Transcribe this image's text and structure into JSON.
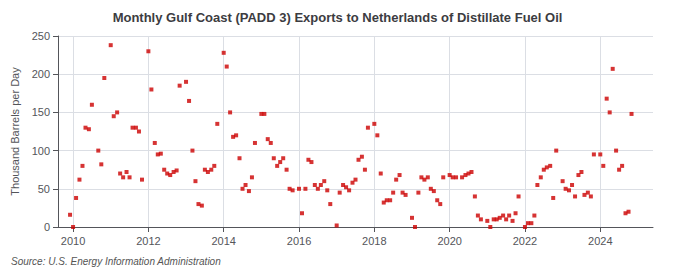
{
  "chart_data": {
    "type": "scatter",
    "title": "Monthly Gulf Coast (PADD 3) Exports to Netherlands of Distillate Fuel Oil",
    "ylabel": "Thousand Barrels per Day",
    "annotation": "Source: U.S. Energy Information Administration",
    "color": "#cc0000",
    "marker": "square",
    "grid": true,
    "xlim": [
      2009.6,
      2025.4
    ],
    "xticks": [
      2010,
      2012,
      2014,
      2016,
      2018,
      2020,
      2022,
      2024
    ],
    "ylim": [
      0,
      250
    ],
    "yticks": [
      0,
      50,
      100,
      150,
      200,
      250
    ],
    "x": [
      2009.92,
      2010.0,
      2010.08,
      2010.17,
      2010.25,
      2010.33,
      2010.42,
      2010.5,
      2010.67,
      2010.75,
      2010.83,
      2011.0,
      2011.08,
      2011.17,
      2011.25,
      2011.33,
      2011.42,
      2011.5,
      2011.58,
      2011.67,
      2011.75,
      2011.83,
      2012.0,
      2012.08,
      2012.17,
      2012.25,
      2012.33,
      2012.42,
      2012.5,
      2012.58,
      2012.67,
      2012.75,
      2012.83,
      2013.0,
      2013.08,
      2013.17,
      2013.25,
      2013.33,
      2013.42,
      2013.5,
      2013.58,
      2013.67,
      2013.75,
      2013.83,
      2014.0,
      2014.08,
      2014.17,
      2014.25,
      2014.33,
      2014.42,
      2014.5,
      2014.58,
      2014.67,
      2014.75,
      2014.83,
      2015.0,
      2015.08,
      2015.17,
      2015.25,
      2015.33,
      2015.42,
      2015.5,
      2015.58,
      2015.67,
      2015.75,
      2015.83,
      2016.0,
      2016.08,
      2016.17,
      2016.25,
      2016.33,
      2016.42,
      2016.5,
      2016.58,
      2016.67,
      2016.75,
      2016.83,
      2017.0,
      2017.08,
      2017.17,
      2017.25,
      2017.33,
      2017.42,
      2017.5,
      2017.58,
      2017.67,
      2017.75,
      2017.83,
      2018.0,
      2018.08,
      2018.17,
      2018.25,
      2018.33,
      2018.42,
      2018.5,
      2018.58,
      2018.67,
      2018.75,
      2018.83,
      2019.0,
      2019.08,
      2019.17,
      2019.25,
      2019.33,
      2019.42,
      2019.5,
      2019.58,
      2019.67,
      2019.75,
      2019.83,
      2020.0,
      2020.08,
      2020.17,
      2020.33,
      2020.42,
      2020.5,
      2020.58,
      2020.67,
      2020.75,
      2020.83,
      2021.0,
      2021.08,
      2021.17,
      2021.25,
      2021.33,
      2021.42,
      2021.5,
      2021.58,
      2021.67,
      2021.75,
      2021.83,
      2022.0,
      2022.08,
      2022.17,
      2022.25,
      2022.33,
      2022.42,
      2022.5,
      2022.58,
      2022.67,
      2022.75,
      2022.83,
      2023.0,
      2023.08,
      2023.17,
      2023.25,
      2023.33,
      2023.42,
      2023.5,
      2023.58,
      2023.67,
      2023.75,
      2023.83,
      2024.0,
      2024.08,
      2024.17,
      2024.25,
      2024.33,
      2024.42,
      2024.5,
      2024.58,
      2024.67,
      2024.75,
      2024.83
    ],
    "values": [
      16,
      0,
      38,
      62,
      80,
      130,
      128,
      160,
      100,
      82,
      195,
      238,
      145,
      150,
      70,
      65,
      72,
      65,
      130,
      130,
      125,
      62,
      230,
      180,
      110,
      95,
      96,
      75,
      70,
      68,
      72,
      74,
      185,
      190,
      165,
      100,
      60,
      30,
      28,
      75,
      72,
      75,
      80,
      135,
      228,
      210,
      150,
      118,
      120,
      90,
      50,
      55,
      47,
      65,
      110,
      148,
      148,
      115,
      110,
      90,
      80,
      85,
      90,
      75,
      50,
      48,
      50,
      18,
      50,
      88,
      85,
      55,
      50,
      55,
      60,
      48,
      30,
      2,
      45,
      55,
      52,
      48,
      58,
      62,
      88,
      92,
      75,
      130,
      135,
      120,
      70,
      32,
      35,
      35,
      45,
      62,
      68,
      45,
      42,
      12,
      0,
      45,
      65,
      62,
      65,
      50,
      47,
      35,
      30,
      65,
      68,
      65,
      65,
      65,
      68,
      70,
      72,
      40,
      15,
      10,
      8,
      0,
      10,
      10,
      12,
      15,
      10,
      15,
      8,
      18,
      40,
      0,
      5,
      5,
      15,
      55,
      65,
      75,
      78,
      80,
      38,
      100,
      60,
      50,
      48,
      55,
      40,
      68,
      72,
      42,
      45,
      40,
      95,
      95,
      80,
      168,
      150,
      207,
      100,
      75,
      80,
      18,
      20,
      148
    ]
  }
}
